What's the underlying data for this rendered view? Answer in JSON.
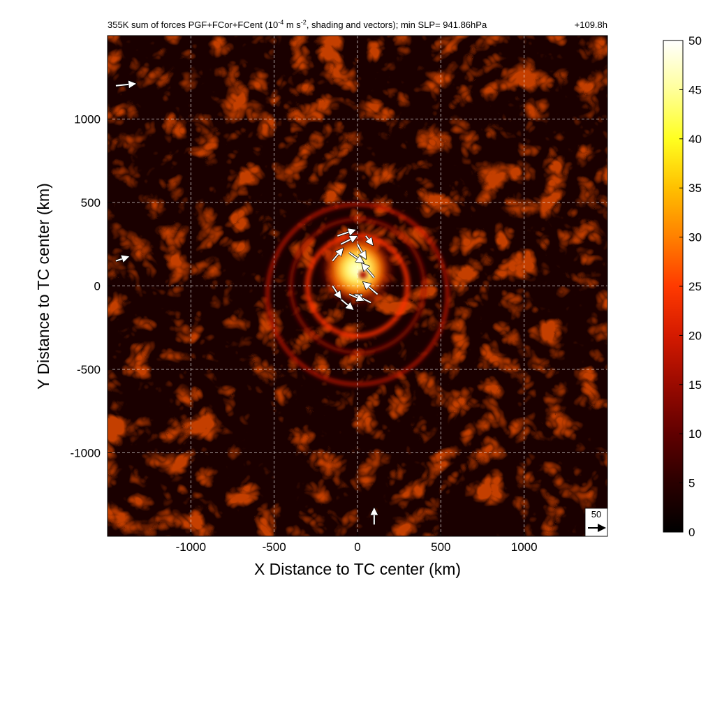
{
  "chart_data": {
    "type": "heatmap",
    "title": "355K sum of forces PGF+FCor+FCent (10",
    "title_exp": "-4",
    "title_mid": " m s",
    "title_exp2": "-2",
    "title_tail": ", shading and vectors); min SLP= 941.86hPa",
    "time_label": "+109.8h",
    "xlabel": "X Distance to TC center (km)",
    "ylabel": "Y Distance to TC center (km)",
    "xlim": [
      -1500,
      1500
    ],
    "ylim": [
      -1500,
      1500
    ],
    "x_ticks": [
      -1000,
      -500,
      0,
      500,
      1000
    ],
    "y_ticks": [
      -1000,
      -500,
      0,
      500,
      1000
    ],
    "grid": true,
    "colorbar": {
      "range": [
        0,
        50
      ],
      "ticks": [
        0,
        5,
        10,
        15,
        20,
        25,
        30,
        35,
        40,
        45,
        50
      ],
      "colors": [
        "#000000",
        "#2a0000",
        "#600000",
        "#9a0a00",
        "#d41a00",
        "#ff3a00",
        "#ff8000",
        "#ffc000",
        "#ffff20",
        "#ffff9a",
        "#ffffff"
      ]
    },
    "reference_vector": {
      "value": "50"
    },
    "features": [
      {
        "name": "inner-core",
        "x": 0,
        "y": 100,
        "radius": 200,
        "peak": 50
      },
      {
        "name": "eyewall-ring",
        "x": 0,
        "y": 0,
        "radius": 300,
        "peak": 22
      },
      {
        "name": "outer-ring",
        "x": 0,
        "y": 0,
        "radius": 400,
        "peak": 10
      },
      {
        "name": "outer-spiral-band",
        "x": 0,
        "y": -50,
        "radius": 540,
        "peak": 14
      }
    ],
    "vectors": [
      {
        "x": -100,
        "y": 250,
        "u": 40,
        "v": 20
      },
      {
        "x": -50,
        "y": 200,
        "u": 35,
        "v": -25
      },
      {
        "x": -150,
        "y": 150,
        "u": 25,
        "v": 30
      },
      {
        "x": -120,
        "y": 300,
        "u": 45,
        "v": 15
      },
      {
        "x": 0,
        "y": 250,
        "u": 20,
        "v": -35
      },
      {
        "x": 100,
        "y": 50,
        "u": -30,
        "v": 35
      },
      {
        "x": 120,
        "y": -50,
        "u": -35,
        "v": 30
      },
      {
        "x": 80,
        "y": -100,
        "u": -40,
        "v": 20
      },
      {
        "x": -50,
        "y": -50,
        "u": 35,
        "v": -15
      },
      {
        "x": -100,
        "y": -80,
        "u": 30,
        "v": -25
      },
      {
        "x": -150,
        "y": 0,
        "u": 20,
        "v": -30
      },
      {
        "x": 50,
        "y": 300,
        "u": 15,
        "v": -20
      },
      {
        "x": -1450,
        "y": 1200,
        "u": 50,
        "v": 5
      },
      {
        "x": -1450,
        "y": 150,
        "u": 30,
        "v": 10
      },
      {
        "x": 100,
        "y": -1430,
        "u": 0,
        "v": 40
      }
    ]
  }
}
